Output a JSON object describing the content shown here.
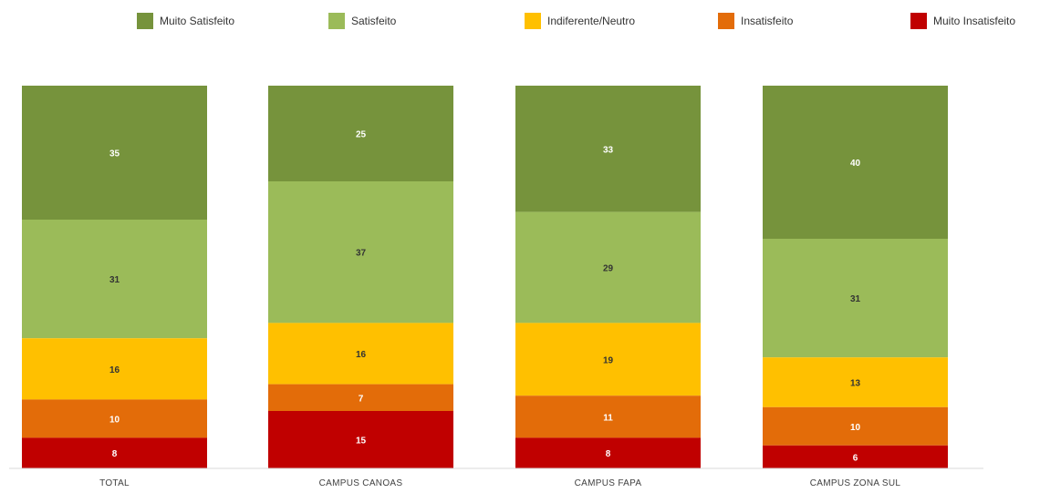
{
  "chart_data": {
    "type": "bar",
    "stacked": true,
    "percent_stacked": true,
    "categories": [
      "TOTAL",
      "CAMPUS CANOAS",
      "CAMPUS FAPA",
      "CAMPUS ZONA SUL"
    ],
    "series": [
      {
        "name": "Muito Satisfeito",
        "color": "#76933C",
        "label_color": "#FFFFFF",
        "values": [
          35,
          25,
          33,
          40
        ]
      },
      {
        "name": "Satisfeito",
        "color": "#9BBB59",
        "label_color": "#333333",
        "values": [
          31,
          37,
          29,
          31
        ]
      },
      {
        "name": "Indiferente/Neutro",
        "color": "#FFC000",
        "label_color": "#333333",
        "values": [
          16,
          16,
          19,
          13
        ]
      },
      {
        "name": "Insatisfeito",
        "color": "#E36C09",
        "label_color": "#FFFFFF",
        "values": [
          10,
          7,
          11,
          10
        ]
      },
      {
        "name": "Muito Insatisfeito",
        "color": "#C00000",
        "label_color": "#FFFFFF",
        "values": [
          8,
          15,
          8,
          6
        ]
      }
    ],
    "legend_position": "top",
    "grid": false,
    "title": "",
    "xlabel": "",
    "ylabel": ""
  }
}
